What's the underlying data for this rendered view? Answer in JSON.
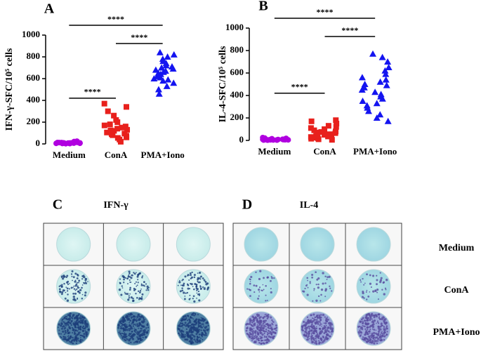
{
  "chart_data": [
    {
      "type": "strip",
      "panel": "A",
      "ylabel": "IFN-γ-SFC/10⁵ cells",
      "categories": [
        "Medium",
        "ConA",
        "PMA+Iono"
      ],
      "colors": [
        "#b000e0",
        "#e8201c",
        "#1414f0"
      ],
      "markers": [
        "circle",
        "square",
        "triangle"
      ],
      "values": [
        [
          5,
          8,
          10,
          12,
          15,
          3,
          6,
          20,
          18,
          9,
          7,
          11,
          14,
          4,
          2,
          16,
          22,
          13,
          10,
          8,
          6,
          25,
          12,
          5,
          9
        ],
        [
          20,
          40,
          55,
          60,
          75,
          80,
          90,
          95,
          100,
          105,
          110,
          120,
          125,
          130,
          140,
          150,
          160,
          170,
          180,
          200,
          220,
          260,
          300,
          340,
          370
        ],
        [
          460,
          500,
          530,
          560,
          580,
          600,
          610,
          620,
          630,
          640,
          650,
          660,
          670,
          680,
          690,
          700,
          710,
          720,
          740,
          760,
          780,
          800,
          820,
          840,
          590
        ]
      ],
      "ylim": [
        0,
        1000
      ],
      "yticks": [
        0,
        200,
        400,
        600,
        800,
        1000
      ],
      "brackets": [
        {
          "label": "****",
          "pair": [
            "Medium",
            "ConA"
          ]
        },
        {
          "label": "****",
          "pair": [
            "ConA",
            "PMA+Iono"
          ]
        },
        {
          "label": "****",
          "pair": [
            "Medium",
            "PMA+Iono"
          ]
        }
      ]
    },
    {
      "type": "strip",
      "panel": "B",
      "ylabel": "IL-4-SFC/10⁵ cells",
      "categories": [
        "Medium",
        "ConA",
        "PMA+Iono"
      ],
      "colors": [
        "#b000e0",
        "#e8201c",
        "#1414f0"
      ],
      "markers": [
        "circle",
        "square",
        "triangle"
      ],
      "values": [
        [
          2,
          4,
          5,
          6,
          8,
          10,
          12,
          3,
          7,
          9,
          15,
          20,
          25,
          5,
          6,
          8,
          11,
          4,
          3,
          14,
          18,
          6,
          9,
          7,
          10
        ],
        [
          5,
          10,
          15,
          20,
          25,
          30,
          35,
          40,
          45,
          50,
          55,
          60,
          65,
          70,
          75,
          80,
          90,
          100,
          110,
          120,
          130,
          150,
          170,
          180,
          40
        ],
        [
          170,
          200,
          230,
          260,
          290,
          310,
          330,
          350,
          370,
          390,
          410,
          430,
          450,
          470,
          490,
          500,
          520,
          540,
          560,
          590,
          620,
          650,
          700,
          740,
          770
        ]
      ],
      "ylim": [
        0,
        1000
      ],
      "yticks": [
        0,
        200,
        400,
        600,
        800,
        1000
      ],
      "brackets": [
        {
          "label": "****",
          "pair": [
            "Medium",
            "ConA"
          ]
        },
        {
          "label": "****",
          "pair": [
            "ConA",
            "PMA+Iono"
          ]
        },
        {
          "label": "****",
          "pair": [
            "Medium",
            "PMA+Iono"
          ]
        }
      ]
    }
  ],
  "plates": {
    "panels": [
      {
        "letter": "C",
        "title": "IFN-γ"
      },
      {
        "letter": "D",
        "title": "IL-4"
      }
    ],
    "rows": [
      "Medium",
      "ConA",
      "PMA+Iono"
    ]
  }
}
